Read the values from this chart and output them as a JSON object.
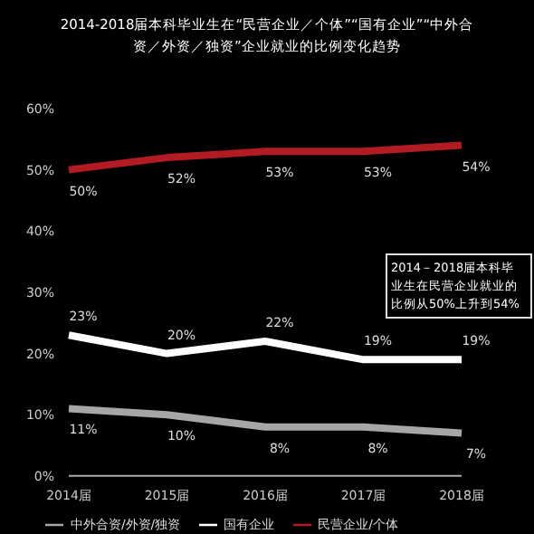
{
  "chart_data": {
    "type": "line",
    "title": "2014-2018届本科毕业生在“民营企业／个体”“国有企业”“中外合资／外资／独资”企业就业的比例变化趋势",
    "categories": [
      "2014届",
      "2015届",
      "2016届",
      "2017届",
      "2018届"
    ],
    "series": [
      {
        "name": "民营企业/个体",
        "color": "#b31b23",
        "values": [
          50,
          52,
          53,
          53,
          54
        ],
        "value_labels": [
          "50%",
          "52%",
          "53%",
          "53%",
          "54%"
        ]
      },
      {
        "name": "国有企业",
        "color": "#ffffff",
        "values": [
          23,
          20,
          22,
          19,
          19
        ],
        "value_labels": [
          "23%",
          "20%",
          "22%",
          "19%",
          "19%"
        ]
      },
      {
        "name": "中外合资/外资/独资",
        "color": "#a6a6a6",
        "values": [
          11,
          10,
          8,
          8,
          7
        ],
        "value_labels": [
          "11%",
          "10%",
          "8%",
          "8%",
          "7%"
        ]
      }
    ],
    "ylim": [
      0,
      60
    ],
    "yticks": [
      {
        "value": 0,
        "label": "0%"
      },
      {
        "value": 10,
        "label": "10%"
      },
      {
        "value": 20,
        "label": "20%"
      },
      {
        "value": 30,
        "label": "30%"
      },
      {
        "value": 40,
        "label": "40%"
      },
      {
        "value": 50,
        "label": "50%"
      },
      {
        "value": 60,
        "label": "60%"
      }
    ],
    "grid": false,
    "legend": "bottom",
    "marker": "none",
    "annotations": [
      "2014－2018届本科毕业生在民营企业就业的比例从50%上升到54%"
    ]
  }
}
